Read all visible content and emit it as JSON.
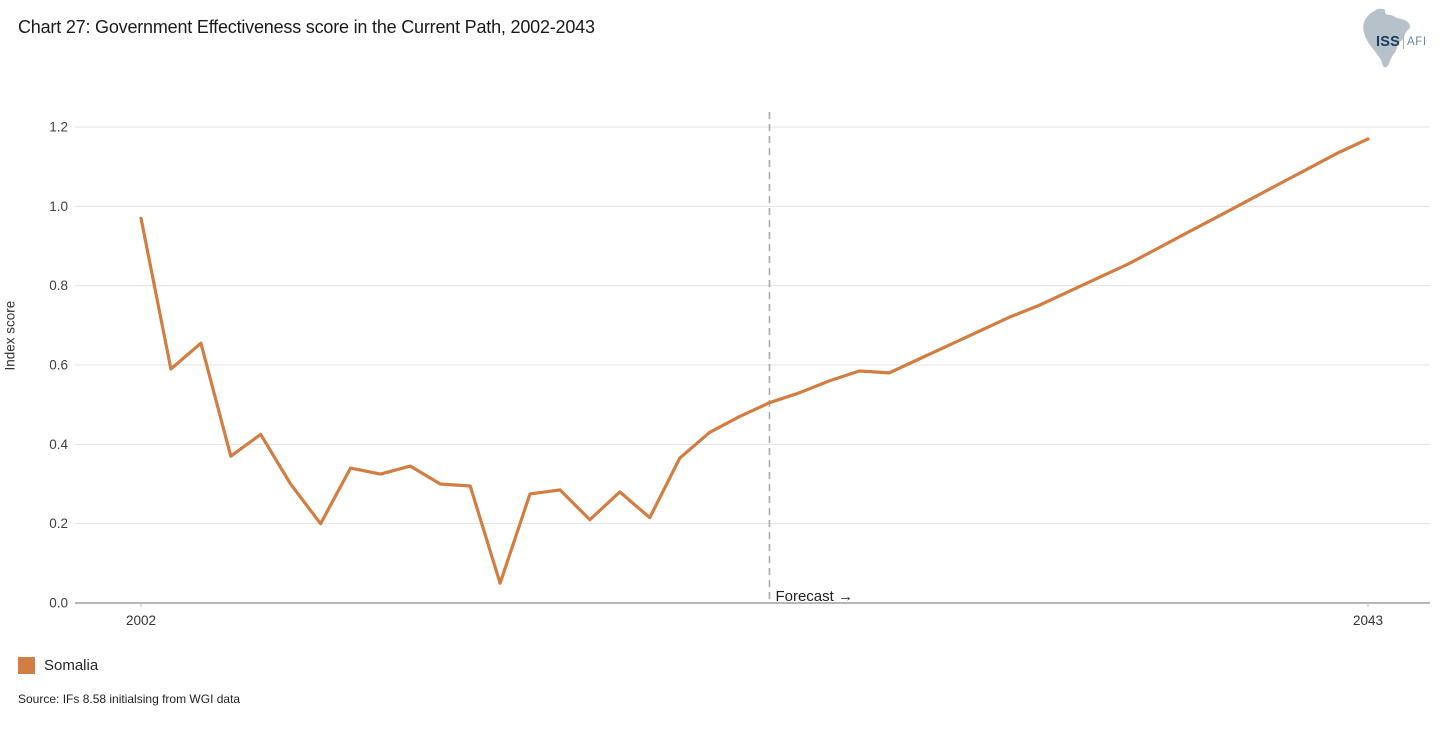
{
  "header": {
    "title": "Chart 27: Government Effectiveness score in the Current Path, 2002-2043",
    "logo": {
      "iss": "ISS",
      "afi": "AFI"
    }
  },
  "chart_data": {
    "type": "line",
    "title": "Chart 27: Government Effectiveness score in the Current Path, 2002-2043",
    "xlabel": "",
    "ylabel": "Index score",
    "ylim": [
      0.0,
      1.2
    ],
    "ytick_step": 0.2,
    "y_tick_labels": [
      "0.0",
      "0.2",
      "0.4",
      "0.6",
      "0.8",
      "1.0",
      "1.2"
    ],
    "x_start": 2002,
    "x_end": 2043,
    "x_ticks": [
      {
        "label": "2002",
        "year": 2002
      },
      {
        "label": "2043",
        "year": 2043
      }
    ],
    "grid": "horizontal",
    "legend_position": "bottom-left",
    "forecast_boundary_year": 2023,
    "forecast_label": "Forecast →",
    "forecast_line_color": "#ababab",
    "series": [
      {
        "name": "Somalia",
        "color": "#D27D41",
        "years": [
          2002,
          2003,
          2004,
          2005,
          2006,
          2007,
          2008,
          2009,
          2010,
          2011,
          2012,
          2013,
          2014,
          2015,
          2016,
          2017,
          2018,
          2019,
          2020,
          2021,
          2022,
          2023,
          2024,
          2025,
          2026,
          2027,
          2028,
          2029,
          2030,
          2031,
          2032,
          2033,
          2034,
          2035,
          2036,
          2037,
          2038,
          2039,
          2040,
          2041,
          2042,
          2043
        ],
        "values": [
          0.97,
          0.59,
          0.655,
          0.37,
          0.425,
          0.3,
          0.2,
          0.34,
          0.325,
          0.345,
          0.3,
          0.295,
          0.05,
          0.275,
          0.285,
          0.21,
          0.28,
          0.215,
          0.365,
          0.43,
          0.47,
          0.505,
          0.53,
          0.56,
          0.585,
          0.58,
          0.615,
          0.65,
          0.685,
          0.72,
          0.75,
          0.785,
          0.82,
          0.855,
          0.895,
          0.935,
          0.975,
          1.015,
          1.055,
          1.095,
          1.135,
          1.17
        ]
      }
    ]
  },
  "legend": {
    "items": [
      {
        "label": "Somalia",
        "color": "#D27D41"
      }
    ]
  },
  "source": "Source: IFs 8.58 initialsing from WGI data"
}
